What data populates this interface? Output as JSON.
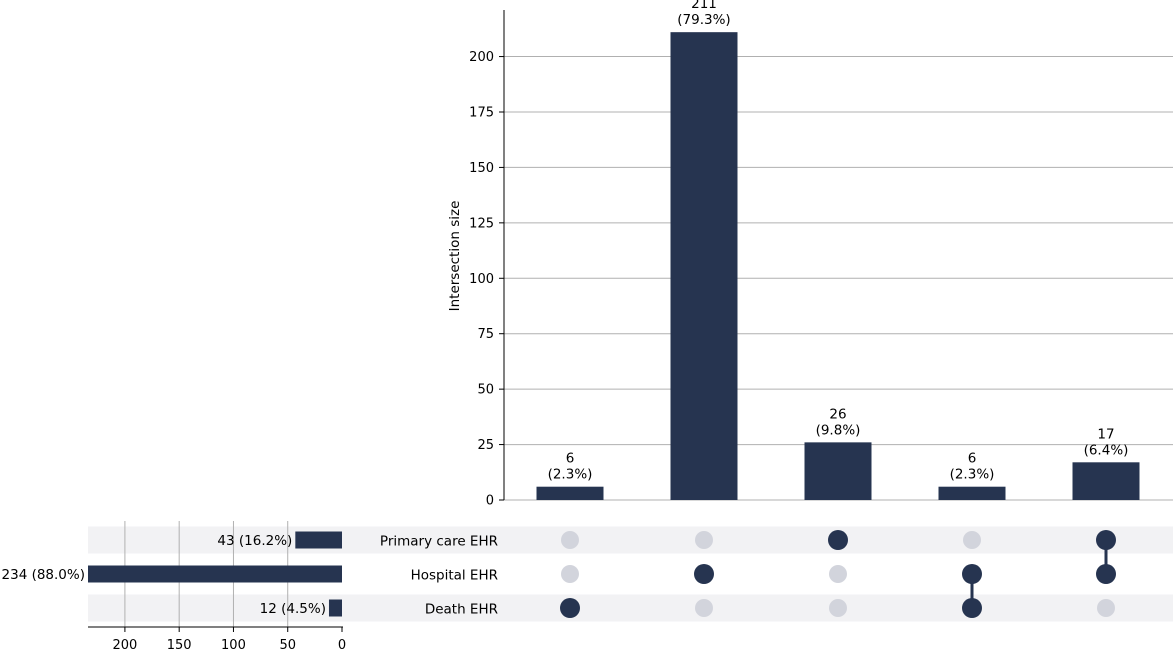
{
  "chart_data": {
    "type": "upset",
    "ylabel": "Intersection size",
    "ylim": [
      0,
      221
    ],
    "yticks": [
      0,
      25,
      50,
      75,
      100,
      125,
      150,
      175,
      200
    ],
    "intersections": [
      {
        "count": 6,
        "value_label": "6",
        "pct_label": "(2.3%)",
        "members": [
          "Death EHR"
        ]
      },
      {
        "count": 211,
        "value_label": "211",
        "pct_label": "(79.3%)",
        "members": [
          "Hospital EHR"
        ]
      },
      {
        "count": 26,
        "value_label": "26",
        "pct_label": "(9.8%)",
        "members": [
          "Primary care EHR"
        ]
      },
      {
        "count": 6,
        "value_label": "6",
        "pct_label": "(2.3%)",
        "members": [
          "Hospital EHR",
          "Death EHR"
        ]
      },
      {
        "count": 17,
        "value_label": "17",
        "pct_label": "(6.4%)",
        "members": [
          "Primary care EHR",
          "Hospital EHR"
        ]
      }
    ],
    "sets": [
      {
        "name": "Primary care EHR",
        "size": 43,
        "label": "43 (16.2%)"
      },
      {
        "name": "Hospital EHR",
        "size": 234,
        "label": "234 (88.0%)"
      },
      {
        "name": "Death EHR",
        "size": 12,
        "label": "12 (4.5%)"
      }
    ],
    "set_size_xticks": [
      200,
      150,
      100,
      50,
      0
    ],
    "set_size_xlim": [
      0,
      234
    ],
    "grid": true,
    "colors": {
      "bar": "#263450",
      "dot_active": "#263450",
      "dot_inactive": "#d2d4dc",
      "grid": "#b0b0b0",
      "stripe": "#f2f2f4"
    }
  }
}
